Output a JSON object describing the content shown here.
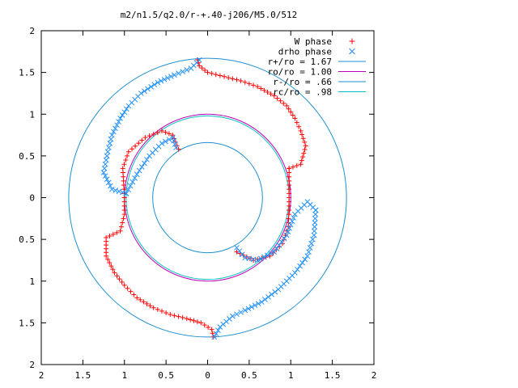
{
  "chart_data": {
    "type": "scatter",
    "title": "m2/n1.5/q2.0/r-+.40-j206/M5.0/512",
    "xlim": [
      -2,
      2
    ],
    "ylim": [
      -2,
      2
    ],
    "x_ticks": [
      {
        "value": -2,
        "label": "2"
      },
      {
        "value": -1.5,
        "label": "1.5"
      },
      {
        "value": -1,
        "label": "1"
      },
      {
        "value": -0.5,
        "label": "0.5"
      },
      {
        "value": 0,
        "label": "0"
      },
      {
        "value": 0.5,
        "label": "0.5"
      },
      {
        "value": 1,
        "label": "1"
      },
      {
        "value": 1.5,
        "label": "1.5"
      },
      {
        "value": 2,
        "label": "2"
      }
    ],
    "y_ticks": [
      {
        "value": 2,
        "label": "2"
      },
      {
        "value": 1.5,
        "label": "1.5"
      },
      {
        "value": 1,
        "label": "1"
      },
      {
        "value": 0.5,
        "label": "0.5"
      },
      {
        "value": 0,
        "label": "0"
      },
      {
        "value": -0.5,
        "label": "0.5"
      },
      {
        "value": -1,
        "label": "1"
      },
      {
        "value": -1.5,
        "label": "1.5"
      },
      {
        "value": -2,
        "label": "2"
      }
    ],
    "grid": false,
    "legend_position": "top-right",
    "legend": [
      {
        "label": "W phase",
        "marker": "plus",
        "color": "#ff0000"
      },
      {
        "label": "drho phase",
        "marker": "cross",
        "color": "#1e90ff"
      },
      {
        "label": "r+/ro = 1.67",
        "marker": "line",
        "color": "#1e90d0"
      },
      {
        "label": "ro/ro = 1.00",
        "marker": "line",
        "color": "#bb00bb"
      },
      {
        "label": "r-/ro = .66",
        "marker": "line",
        "color": "#1e90d0"
      },
      {
        "label": "rc/ro = .98",
        "marker": "line",
        "color": "#00c0c0"
      }
    ],
    "circles": [
      {
        "name": "r+/ro",
        "radius": 1.67,
        "color": "#1e90d0"
      },
      {
        "name": "ro/ro",
        "radius": 1.0,
        "color": "#bb00bb"
      },
      {
        "name": "r-/ro",
        "radius": 0.66,
        "color": "#1e90d0"
      },
      {
        "name": "rc/ro",
        "radius": 0.98,
        "color": "#00c0c0"
      }
    ],
    "series": [
      {
        "name": "W phase",
        "marker": "plus",
        "color": "#ff0000",
        "arms": [
          {
            "points": [
              [
                -0.12,
                1.65
              ],
              [
                -0.1,
                1.58
              ],
              [
                0.0,
                1.5
              ],
              [
                0.2,
                1.45
              ],
              [
                0.4,
                1.4
              ],
              [
                0.6,
                1.33
              ],
              [
                0.8,
                1.22
              ],
              [
                0.95,
                1.1
              ],
              [
                1.05,
                0.95
              ],
              [
                1.12,
                0.8
              ],
              [
                1.18,
                0.62
              ],
              [
                1.12,
                0.4
              ],
              [
                0.98,
                0.35
              ]
            ]
          },
          {
            "points": [
              [
                0.98,
                0.35
              ],
              [
                0.98,
                0.1
              ],
              [
                0.98,
                -0.1
              ],
              [
                0.97,
                -0.35
              ],
              [
                0.9,
                -0.55
              ],
              [
                0.75,
                -0.7
              ],
              [
                0.55,
                -0.75
              ],
              [
                0.35,
                -0.65
              ]
            ]
          },
          {
            "points": [
              [
                -0.35,
                0.58
              ],
              [
                -0.42,
                0.75
              ],
              [
                -0.55,
                0.8
              ],
              [
                -0.75,
                0.72
              ],
              [
                -0.95,
                0.55
              ],
              [
                -1.02,
                0.35
              ],
              [
                -1.0,
                0.0
              ],
              [
                -1.0,
                -0.2
              ],
              [
                -1.05,
                -0.4
              ],
              [
                -1.22,
                -0.48
              ],
              [
                -1.22,
                -0.7
              ],
              [
                -1.12,
                -0.9
              ],
              [
                -1.0,
                -1.05
              ],
              [
                -0.85,
                -1.2
              ],
              [
                -0.65,
                -1.32
              ],
              [
                -0.45,
                -1.4
              ],
              [
                -0.25,
                -1.45
              ],
              [
                -0.08,
                -1.5
              ],
              [
                0.05,
                -1.58
              ],
              [
                0.07,
                -1.67
              ]
            ]
          }
        ]
      },
      {
        "name": "drho phase",
        "marker": "cross",
        "color": "#1e90ff",
        "arms": [
          {
            "points": [
              [
                -0.1,
                1.65
              ],
              [
                -0.2,
                1.55
              ],
              [
                -0.4,
                1.47
              ],
              [
                -0.6,
                1.38
              ],
              [
                -0.8,
                1.25
              ],
              [
                -0.95,
                1.1
              ],
              [
                -1.05,
                0.95
              ],
              [
                -1.15,
                0.75
              ],
              [
                -1.2,
                0.55
              ],
              [
                -1.25,
                0.3
              ],
              [
                -1.15,
                0.1
              ],
              [
                -0.98,
                0.05
              ]
            ]
          },
          {
            "points": [
              [
                -0.98,
                0.05
              ],
              [
                -0.85,
                0.28
              ],
              [
                -0.7,
                0.5
              ],
              [
                -0.55,
                0.65
              ],
              [
                -0.42,
                0.72
              ],
              [
                -0.38,
                0.6
              ]
            ]
          },
          {
            "points": [
              [
                0.35,
                -0.6
              ],
              [
                0.45,
                -0.72
              ],
              [
                0.6,
                -0.75
              ],
              [
                0.8,
                -0.65
              ],
              [
                0.95,
                -0.45
              ],
              [
                1.05,
                -0.2
              ],
              [
                1.2,
                -0.05
              ],
              [
                1.3,
                -0.15
              ]
            ]
          },
          {
            "points": [
              [
                1.3,
                -0.15
              ],
              [
                1.28,
                -0.45
              ],
              [
                1.2,
                -0.7
              ],
              [
                1.05,
                -0.9
              ],
              [
                0.85,
                -1.1
              ],
              [
                0.65,
                -1.25
              ],
              [
                0.45,
                -1.35
              ],
              [
                0.3,
                -1.42
              ],
              [
                0.15,
                -1.55
              ],
              [
                0.08,
                -1.67
              ]
            ]
          }
        ]
      }
    ]
  }
}
